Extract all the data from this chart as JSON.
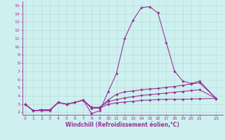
{
  "title": "",
  "xlabel": "Windchill (Refroidissement éolien,°C)",
  "ylabel": "",
  "bg_color": "#cff0f0",
  "grid_color": "#aaddcc",
  "line_color": "#993399",
  "x_ticks": [
    0,
    1,
    2,
    3,
    4,
    5,
    6,
    7,
    8,
    9,
    10,
    11,
    12,
    13,
    14,
    15,
    16,
    17,
    18,
    19,
    20,
    21,
    23
  ],
  "y_ticks": [
    2,
    3,
    4,
    5,
    6,
    7,
    8,
    9,
    10,
    11,
    12,
    13,
    14,
    15
  ],
  "xlim": [
    -0.3,
    23.8
  ],
  "ylim": [
    1.7,
    15.5
  ],
  "series": [
    [
      3.0,
      2.2,
      2.2,
      2.2,
      3.2,
      3.0,
      3.2,
      3.5,
      1.85,
      2.2,
      4.5,
      6.7,
      11.0,
      13.2,
      14.75,
      14.85,
      14.1,
      10.5,
      7.0,
      5.8,
      5.5,
      5.8,
      3.7
    ],
    [
      3.0,
      2.2,
      2.3,
      2.3,
      3.2,
      3.0,
      3.2,
      3.5,
      2.6,
      2.6,
      3.5,
      4.2,
      4.5,
      4.6,
      4.75,
      4.85,
      4.9,
      5.05,
      5.15,
      5.3,
      5.45,
      5.6,
      3.7
    ],
    [
      3.0,
      2.2,
      2.3,
      2.3,
      3.2,
      3.0,
      3.2,
      3.5,
      2.6,
      2.6,
      3.3,
      3.55,
      3.75,
      3.9,
      4.05,
      4.15,
      4.25,
      4.35,
      4.45,
      4.55,
      4.65,
      4.75,
      3.7
    ],
    [
      3.0,
      2.2,
      2.3,
      2.3,
      3.2,
      3.0,
      3.2,
      3.5,
      2.5,
      2.5,
      3.0,
      3.15,
      3.25,
      3.35,
      3.45,
      3.5,
      3.55,
      3.6,
      3.6,
      3.6,
      3.62,
      3.65,
      3.7
    ]
  ],
  "marker": "D",
  "markersize": 1.8,
  "linewidth": 0.8,
  "xlabel_fontsize": 5.5,
  "tick_fontsize": 4.5
}
